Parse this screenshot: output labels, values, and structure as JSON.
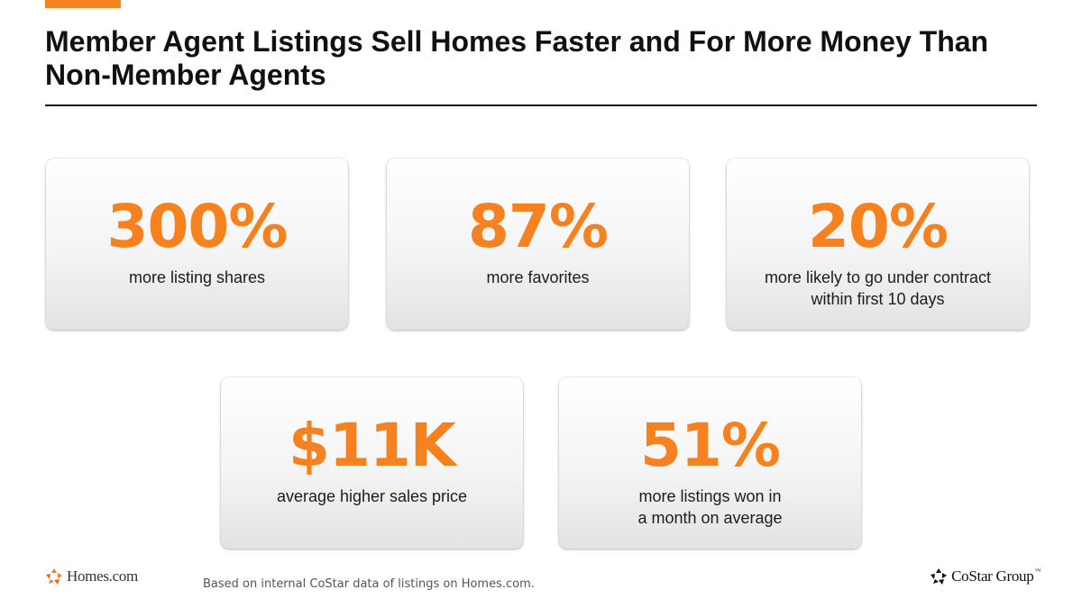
{
  "slide": {
    "title": "Member Agent Listings Sell Homes Faster and For More Money Than Non-Member Agents"
  },
  "stats": [
    {
      "value": "300%",
      "label": "more listing shares"
    },
    {
      "value": "87%",
      "label": "more favorites"
    },
    {
      "value": "20%",
      "label": "more likely to go under contract\nwithin first 10 days"
    },
    {
      "value": "$11K",
      "label": "average higher sales price"
    },
    {
      "value": "51%",
      "label": "more listings won in\na month on average"
    }
  ],
  "footer": {
    "left_logo_text": "Homes.com",
    "footnote": "Based on internal CoStar data of listings on Homes.com.",
    "right_logo_text": "CoStar Group",
    "right_logo_tm": "™"
  },
  "colors": {
    "accent": "#f5821f",
    "title_text": "#111111",
    "rule": "#1a1a1a"
  }
}
